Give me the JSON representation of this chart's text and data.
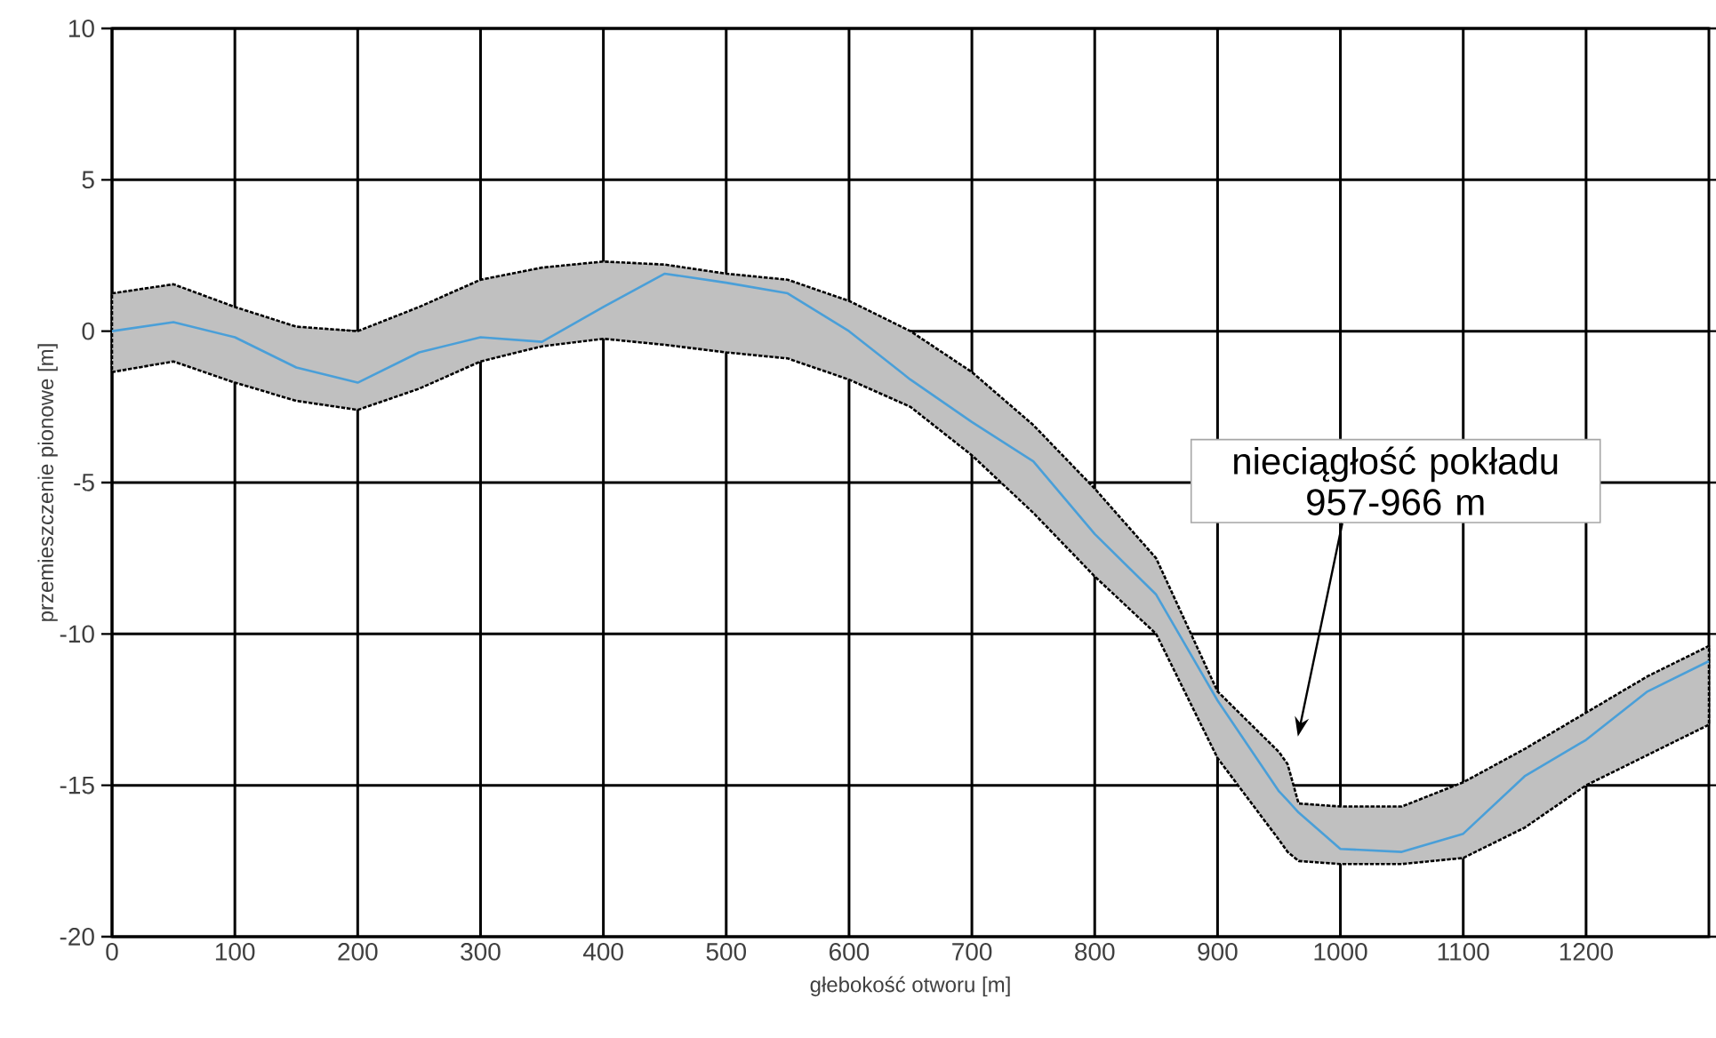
{
  "chart_data": {
    "type": "line",
    "xlabel": "głebokość otworu [m]",
    "ylabel": "przemieszczenie pionowe [m]",
    "x": [
      0,
      50,
      100,
      150,
      200,
      250,
      300,
      350,
      400,
      450,
      500,
      550,
      600,
      650,
      700,
      750,
      800,
      850,
      900,
      950,
      957,
      966,
      1000,
      1050,
      1100,
      1150,
      1200,
      1250,
      1300
    ],
    "series": [
      {
        "color": "#4a9fd8",
        "values": [
          0,
          0.3,
          -0.2,
          -1.2,
          -1.7,
          -0.7,
          -0.2,
          -0.35,
          0.8,
          1.9,
          1.6,
          1.25,
          0.0,
          -1.6,
          -3.0,
          -4.3,
          -6.7,
          -8.7,
          -12.2,
          -15.2,
          -15.5,
          -15.9,
          -17.1,
          -17.2,
          -16.6,
          -14.7,
          -13.5,
          -11.9,
          -10.9
        ],
        "upper": [
          1.25,
          1.55,
          0.8,
          0.15,
          0.0,
          0.8,
          1.7,
          2.1,
          2.3,
          2.2,
          1.9,
          1.7,
          1.0,
          0.0,
          -1.35,
          -3.1,
          -5.2,
          -7.5,
          -11.9,
          -13.9,
          -14.3,
          -15.6,
          -15.7,
          -15.7,
          -14.9,
          -13.8,
          -12.6,
          -11.4,
          -10.4
        ],
        "lower": [
          -1.35,
          -1.0,
          -1.7,
          -2.3,
          -2.6,
          -1.9,
          -1.0,
          -0.5,
          -0.25,
          -0.45,
          -0.7,
          -0.9,
          -1.6,
          -2.5,
          -4.1,
          -6.0,
          -8.1,
          -10.0,
          -14.1,
          -16.8,
          -17.2,
          -17.5,
          -17.6,
          -17.6,
          -17.4,
          -16.4,
          -15.0,
          -14.0,
          -13.0
        ]
      }
    ],
    "xlim": [
      0,
      1300
    ],
    "ylim": [
      -20,
      10
    ],
    "xticks": [
      0,
      100,
      200,
      300,
      400,
      500,
      600,
      700,
      800,
      900,
      1000,
      1100,
      1200
    ],
    "yticks": [
      -20,
      -15,
      -10,
      -5,
      0,
      5,
      10
    ],
    "grid": true,
    "annotations": [
      "nieciągłość pokładu 957-966 m"
    ]
  }
}
